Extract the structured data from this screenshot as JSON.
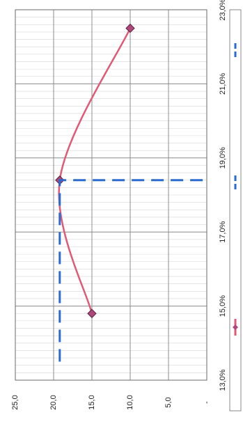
{
  "chart_data": {
    "type": "line",
    "orientation": "rotated-90-clockwise",
    "xlabel": "",
    "ylabel": "",
    "xlim": [
      13.0,
      23.0
    ],
    "ylim": [
      0.0,
      25.0
    ],
    "x_ticks": [
      "13,0%",
      "15,0%",
      "17,0%",
      "19,0%",
      "21,0%",
      "23,0%"
    ],
    "y_ticks": [
      "25,0",
      "20,0",
      "15,0",
      "10,0",
      "5,0",
      "-"
    ],
    "grid": true,
    "legend_position": "right",
    "series": [
      {
        "name": "",
        "style": "solid-with-diamond-markers",
        "color": "#e05a78",
        "marker_color": "#b0477a",
        "x": [
          14.8,
          18.4,
          22.5
        ],
        "y": [
          15.0,
          19.2,
          10.0
        ],
        "smooth": true
      },
      {
        "name": "",
        "style": "dashed",
        "color": "#2a6bd1",
        "x": [
          13.5,
          18.4,
          18.4
        ],
        "y": [
          19.2,
          19.2,
          0.0
        ]
      }
    ],
    "legend": [
      {
        "label": "",
        "color": "#e05a78"
      },
      {
        "label": "",
        "color": "#2a6bd1"
      },
      {
        "label": "",
        "color": "#2a6bd1"
      }
    ]
  }
}
